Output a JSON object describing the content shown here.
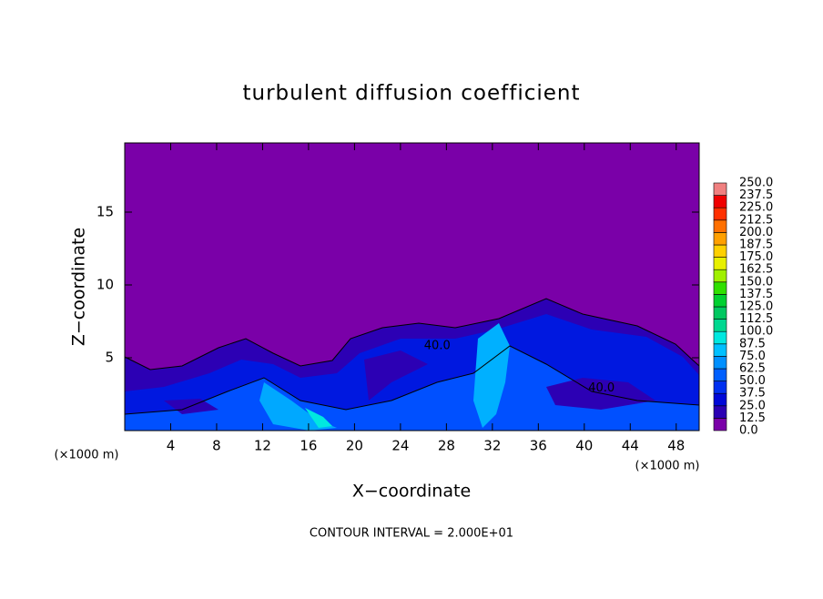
{
  "chart_data": {
    "type": "contour",
    "title": "turbulent diffusion coefficient",
    "x_label": "X−coordinate",
    "y_label": "Z−coordinate",
    "x_unit": "(×1000 m)",
    "contour_interval": "CONTOUR INTERVAL = 2.000E+01",
    "xlim": [
      0,
      50
    ],
    "ylim": [
      0,
      20
    ],
    "xticks": [
      4,
      8,
      12,
      16,
      20,
      24,
      28,
      32,
      36,
      40,
      44,
      48
    ],
    "yticks": [
      5,
      10,
      15
    ],
    "contour_labels": [
      {
        "text": "40.0",
        "x": 27.2,
        "y": 5.8
      },
      {
        "text": "40.0",
        "x": 41.5,
        "y": 2.9
      }
    ],
    "colorbar": {
      "ticks": [
        {
          "value": 0,
          "label": "0.0"
        },
        {
          "value": 12.5,
          "label": "12.5"
        },
        {
          "value": 25,
          "label": "25.0"
        },
        {
          "value": 37.5,
          "label": "37.5"
        },
        {
          "value": 50,
          "label": "50.0"
        },
        {
          "value": 62.5,
          "label": "62.5"
        },
        {
          "value": 75,
          "label": "75.0"
        },
        {
          "value": 87.5,
          "label": "87.5"
        },
        {
          "value": 100,
          "label": "100.0"
        },
        {
          "value": 112.5,
          "label": "112.5"
        },
        {
          "value": 125,
          "label": "125.0"
        },
        {
          "value": 137.5,
          "label": "137.5"
        },
        {
          "value": 150,
          "label": "150.0"
        },
        {
          "value": 162.5,
          "label": "162.5"
        },
        {
          "value": 175,
          "label": "175.0"
        },
        {
          "value": 187.5,
          "label": "187.5"
        },
        {
          "value": 200,
          "label": "200.0"
        },
        {
          "value": 212.5,
          "label": "212.5"
        },
        {
          "value": 225,
          "label": "225.0"
        },
        {
          "value": 237.5,
          "label": "237.5"
        },
        {
          "value": 250,
          "label": "250.0"
        }
      ],
      "colors": [
        "#7a00a8",
        "#2c00b4",
        "#0008d8",
        "#0030f0",
        "#0060ff",
        "#0090ff",
        "#00c0ff",
        "#00e8e0",
        "#00d890",
        "#00c860",
        "#00d030",
        "#30e000",
        "#a0f000",
        "#e8f000",
        "#ffd000",
        "#ffa000",
        "#ff7000",
        "#ff3000",
        "#f00000",
        "#f08080"
      ]
    }
  }
}
